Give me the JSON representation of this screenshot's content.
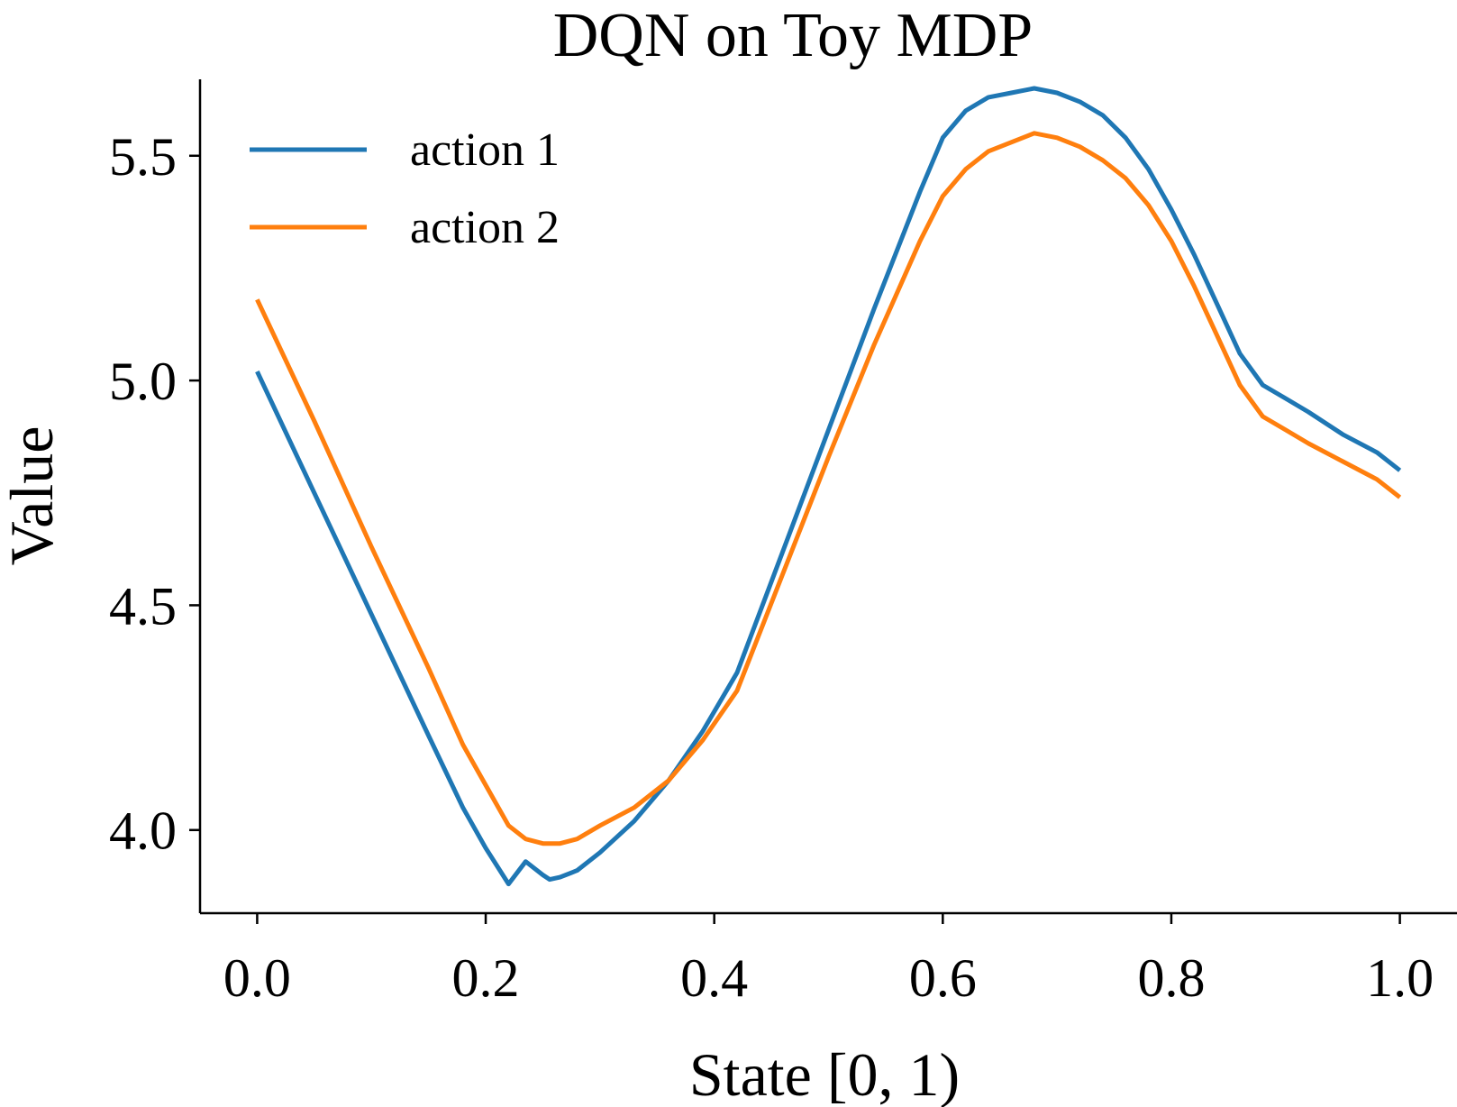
{
  "chart_data": {
    "type": "line",
    "title": "DQN on Toy MDP",
    "xlabel": "State [0, 1)",
    "ylabel": "Value",
    "xlim": [
      -0.05,
      1.05
    ],
    "ylim": [
      3.815,
      5.67
    ],
    "xticks": [
      0.0,
      0.2,
      0.4,
      0.6,
      0.8,
      1.0
    ],
    "xtick_labels": [
      "0.0",
      "0.2",
      "0.4",
      "0.6",
      "0.8",
      "1.0"
    ],
    "yticks": [
      4.0,
      4.5,
      5.0,
      5.5
    ],
    "ytick_labels": [
      "4.0",
      "4.5",
      "5.0",
      "5.5"
    ],
    "grid": false,
    "legend_position": "top-left",
    "series": [
      {
        "name": "action 1",
        "color": "#1f77b4",
        "x": [
          0.0,
          0.05,
          0.1,
          0.15,
          0.18,
          0.2,
          0.22,
          0.235,
          0.25,
          0.256,
          0.265,
          0.28,
          0.3,
          0.33,
          0.36,
          0.39,
          0.42,
          0.46,
          0.5,
          0.54,
          0.58,
          0.6,
          0.62,
          0.64,
          0.66,
          0.68,
          0.7,
          0.72,
          0.74,
          0.76,
          0.78,
          0.8,
          0.82,
          0.84,
          0.86,
          0.88,
          0.9,
          0.92,
          0.95,
          0.98,
          1.0
        ],
        "y": [
          5.02,
          4.75,
          4.48,
          4.21,
          4.05,
          3.96,
          3.88,
          3.93,
          3.9,
          3.89,
          3.895,
          3.91,
          3.95,
          4.02,
          4.11,
          4.22,
          4.35,
          4.62,
          4.89,
          5.16,
          5.42,
          5.54,
          5.6,
          5.63,
          5.64,
          5.65,
          5.64,
          5.62,
          5.59,
          5.54,
          5.47,
          5.38,
          5.28,
          5.17,
          5.06,
          4.99,
          4.96,
          4.93,
          4.88,
          4.84,
          4.8
        ]
      },
      {
        "name": "action 2",
        "color": "#ff7f0e",
        "x": [
          0.0,
          0.05,
          0.1,
          0.15,
          0.18,
          0.2,
          0.22,
          0.235,
          0.25,
          0.256,
          0.265,
          0.28,
          0.3,
          0.33,
          0.36,
          0.39,
          0.42,
          0.46,
          0.5,
          0.54,
          0.58,
          0.6,
          0.62,
          0.64,
          0.66,
          0.68,
          0.7,
          0.72,
          0.74,
          0.76,
          0.78,
          0.8,
          0.82,
          0.84,
          0.86,
          0.88,
          0.9,
          0.92,
          0.95,
          0.98,
          1.0
        ],
        "y": [
          5.18,
          4.91,
          4.63,
          4.36,
          4.19,
          4.1,
          4.01,
          3.98,
          3.97,
          3.97,
          3.97,
          3.98,
          4.01,
          4.05,
          4.11,
          4.2,
          4.31,
          4.57,
          4.83,
          5.08,
          5.31,
          5.41,
          5.47,
          5.51,
          5.53,
          5.55,
          5.54,
          5.52,
          5.49,
          5.45,
          5.39,
          5.31,
          5.21,
          5.1,
          4.99,
          4.92,
          4.89,
          4.86,
          4.82,
          4.78,
          4.74
        ]
      }
    ]
  }
}
